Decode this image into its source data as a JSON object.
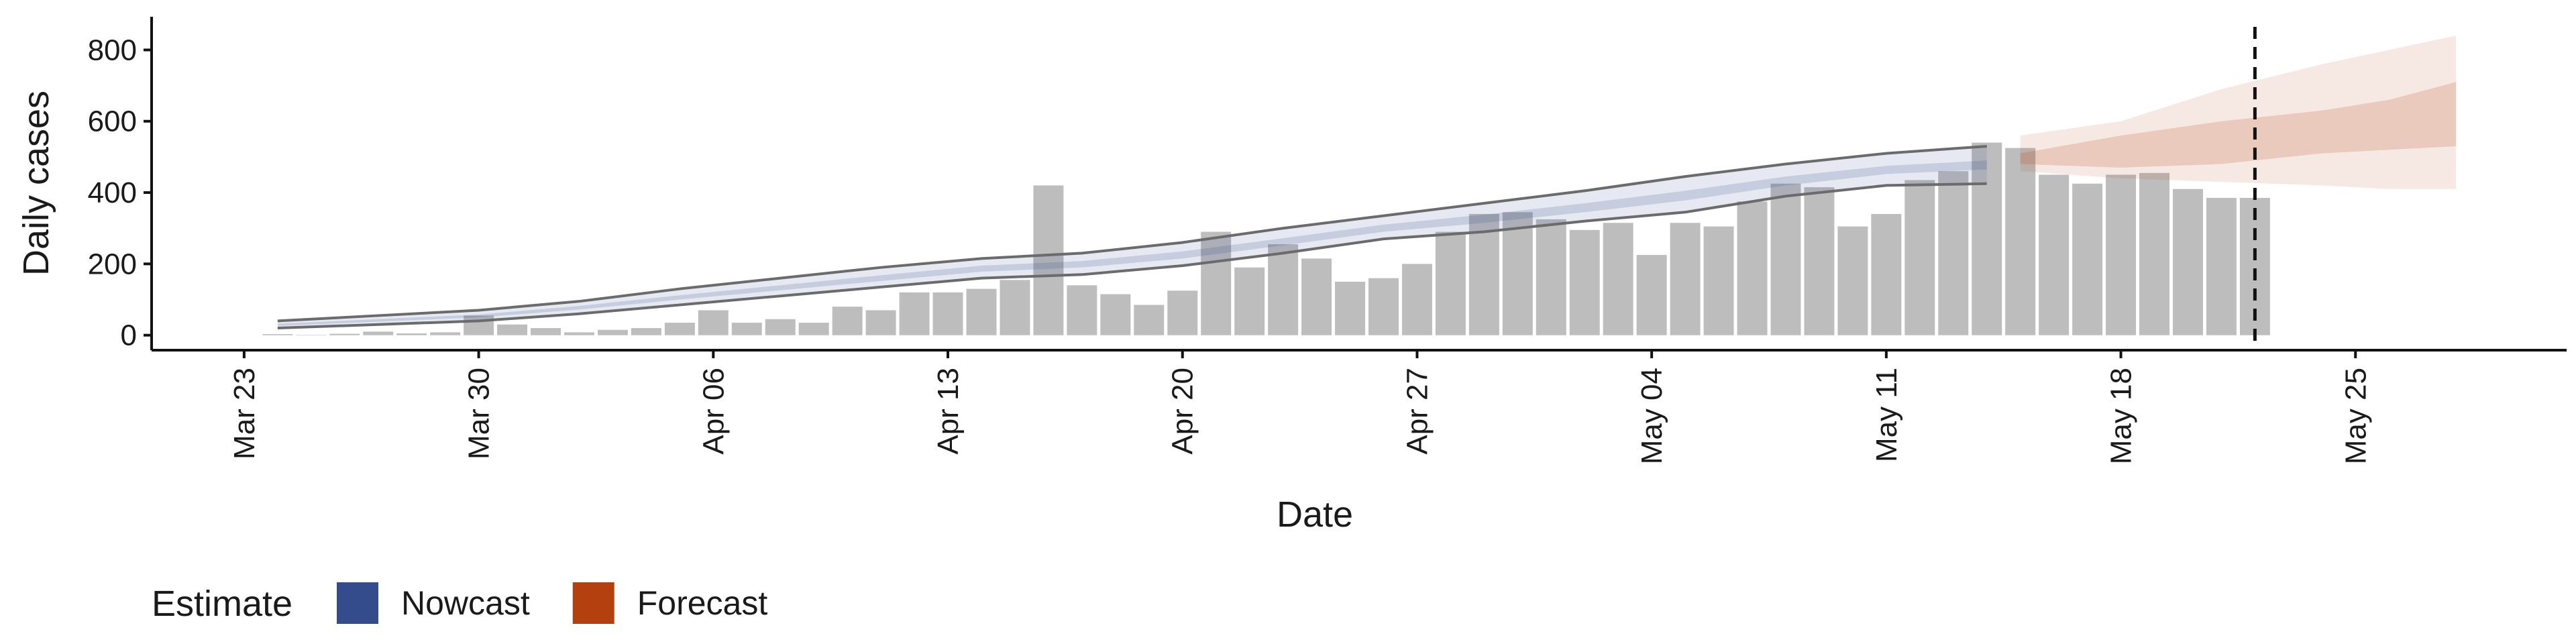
{
  "chart_data": {
    "type": "bar",
    "x_label": "Date",
    "y_label": "Daily cases",
    "xlim": [
      -2.76,
      69.3
    ],
    "ylim": [
      -42,
      893
    ],
    "xticks": [
      {
        "value": 0,
        "label": "Mar 23"
      },
      {
        "value": 7,
        "label": "Mar 30"
      },
      {
        "value": 14,
        "label": "Apr 06"
      },
      {
        "value": 21,
        "label": "Apr 13"
      },
      {
        "value": 28,
        "label": "Apr 20"
      },
      {
        "value": 35,
        "label": "Apr 27"
      },
      {
        "value": 42,
        "label": "May 04"
      },
      {
        "value": 49,
        "label": "May 11"
      },
      {
        "value": 56,
        "label": "May 18"
      },
      {
        "value": 63,
        "label": "May 25"
      }
    ],
    "yticks": [
      0,
      200,
      400,
      600,
      800
    ],
    "bars": {
      "color": "#bdbdbd",
      "x": [
        1,
        2,
        3,
        4,
        5,
        6,
        7,
        8,
        9,
        10,
        11,
        12,
        13,
        14,
        15,
        16,
        17,
        18,
        19,
        20,
        21,
        22,
        23,
        24,
        25,
        26,
        27,
        28,
        29,
        30,
        31,
        32,
        33,
        34,
        35,
        36,
        37,
        38,
        39,
        40,
        41,
        42,
        43,
        44,
        45,
        46,
        47,
        48,
        49,
        50,
        51,
        52,
        53,
        54,
        55,
        56,
        57,
        58,
        59,
        60
      ],
      "values": [
        3,
        1,
        4,
        10,
        5,
        8,
        55,
        30,
        20,
        8,
        15,
        20,
        35,
        70,
        35,
        45,
        35,
        80,
        70,
        120,
        120,
        130,
        155,
        420,
        140,
        115,
        85,
        125,
        290,
        190,
        255,
        215,
        150,
        160,
        200,
        290,
        340,
        345,
        325,
        295,
        315,
        225,
        315,
        305,
        375,
        425,
        415,
        305,
        340,
        435,
        460,
        540,
        525,
        450,
        425,
        450,
        455,
        410,
        385,
        385
      ]
    },
    "series": [
      {
        "name": "Nowcast",
        "color": "#344b8c",
        "outline_color": "#6b6b6b",
        "x": [
          1,
          4,
          7,
          10,
          13,
          16,
          19,
          22,
          25,
          28,
          31,
          34,
          37,
          40,
          43,
          46,
          49,
          52
        ],
        "upper_90": [
          40,
          55,
          70,
          95,
          130,
          160,
          190,
          215,
          230,
          260,
          300,
          335,
          370,
          405,
          445,
          480,
          510,
          530
        ],
        "lower_90": [
          20,
          30,
          40,
          60,
          85,
          110,
          135,
          160,
          170,
          195,
          230,
          270,
          290,
          320,
          345,
          390,
          420,
          425
        ],
        "upper_50": [
          32,
          45,
          58,
          82,
          112,
          140,
          168,
          195,
          208,
          235,
          272,
          310,
          338,
          370,
          405,
          445,
          475,
          490
        ],
        "lower_50": [
          26,
          38,
          50,
          72,
          100,
          126,
          152,
          178,
          190,
          215,
          252,
          290,
          315,
          345,
          378,
          420,
          452,
          465
        ]
      },
      {
        "name": "Forecast",
        "color": "#b5400f",
        "x": [
          53,
          56,
          59,
          62,
          64,
          66
        ],
        "upper_90": [
          560,
          600,
          690,
          760,
          800,
          840
        ],
        "lower_90": [
          460,
          440,
          430,
          420,
          410,
          410
        ],
        "upper_50": [
          510,
          560,
          600,
          630,
          660,
          710
        ],
        "lower_50": [
          480,
          470,
          480,
          510,
          520,
          530
        ]
      }
    ],
    "legend_title": "Estimate",
    "vline": 60
  }
}
